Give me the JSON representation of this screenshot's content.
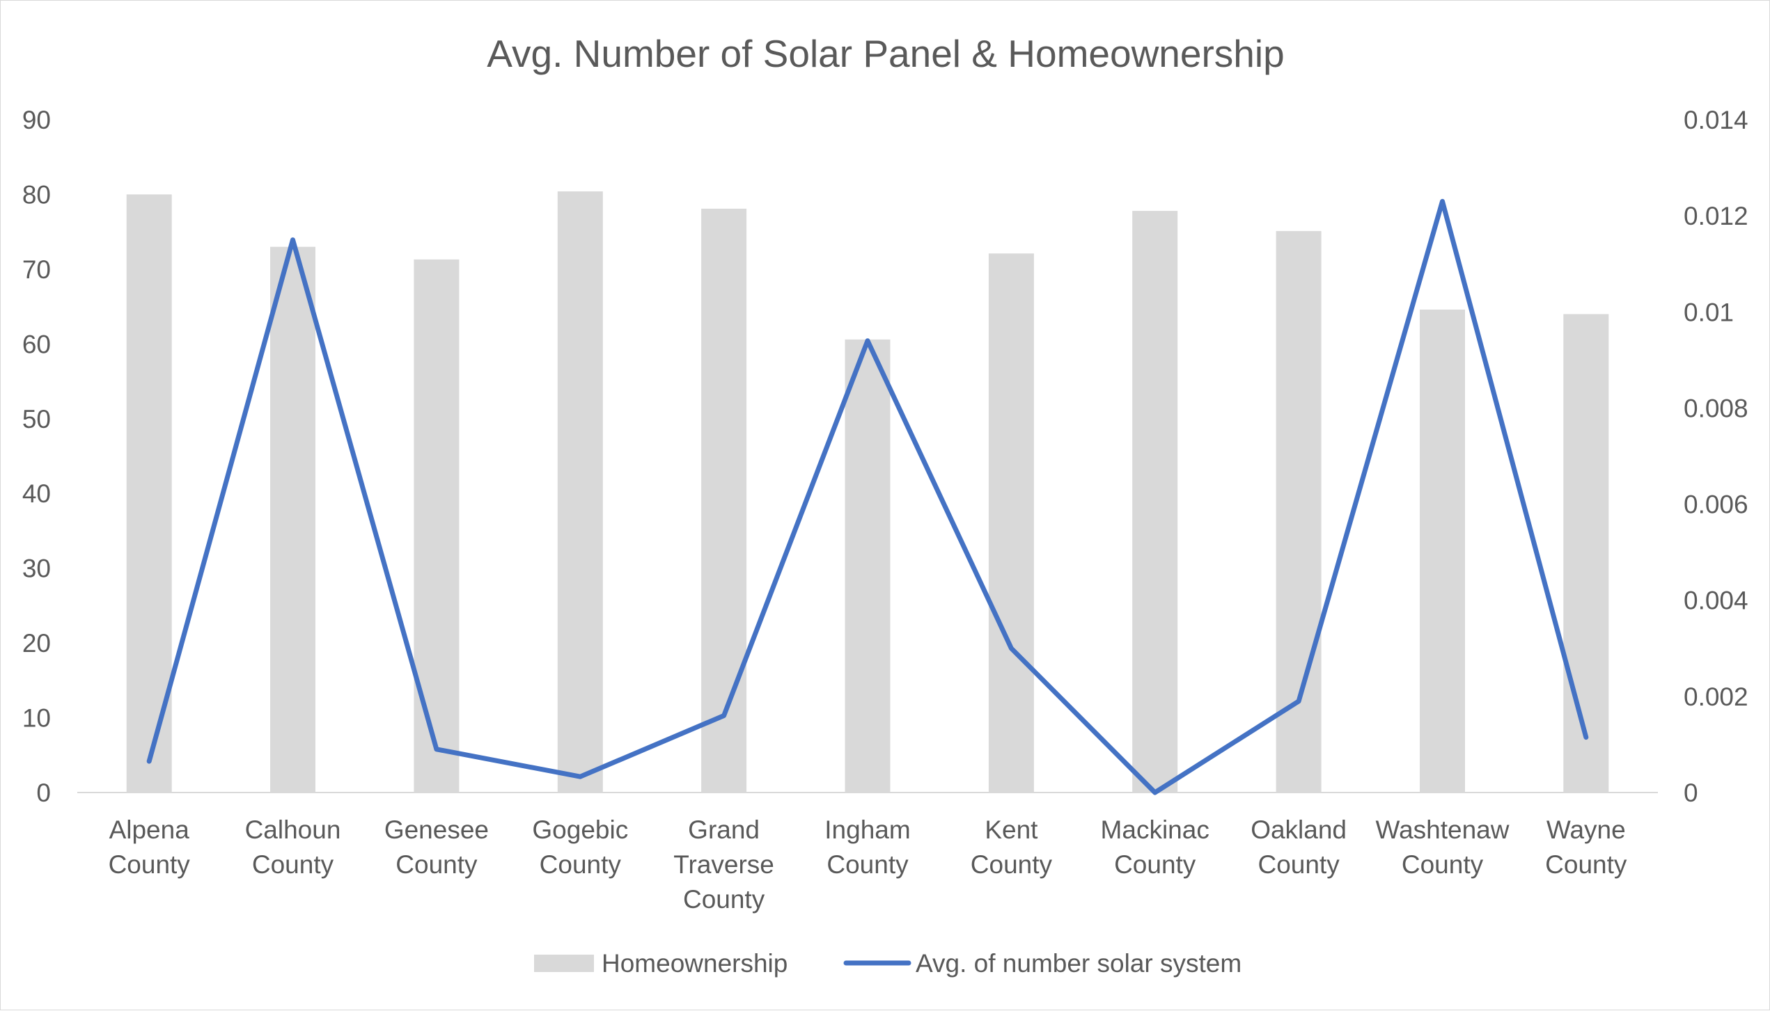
{
  "chart_data": {
    "type": "bar",
    "title": "Avg. Number of Solar Panel  & Homeownership",
    "categories": [
      [
        "Alpena",
        "County"
      ],
      [
        "Calhoun",
        "County"
      ],
      [
        "Genesee",
        "County"
      ],
      [
        "Gogebic",
        "County"
      ],
      [
        "Grand",
        "Traverse",
        "County"
      ],
      [
        "Ingham",
        "County"
      ],
      [
        "Kent",
        "County"
      ],
      [
        "Mackinac",
        "County"
      ],
      [
        "Oakland",
        "County"
      ],
      [
        "Washtenaw",
        "County"
      ],
      [
        "Wayne",
        "County"
      ]
    ],
    "series": [
      {
        "name": "Homeownership",
        "type": "bar",
        "axis": "left",
        "color": "#d9d9d9",
        "values": [
          80,
          73,
          71.3,
          80.4,
          78.1,
          60.6,
          72.1,
          77.8,
          75.1,
          64.6,
          64
        ]
      },
      {
        "name": "Avg. of number solar system",
        "type": "line",
        "axis": "right",
        "color": "#4472c4",
        "values": [
          0.00065,
          0.0115,
          0.0009,
          0.00033,
          0.0016,
          0.0094,
          0.003,
          0.0,
          0.0019,
          0.0123,
          0.00115
        ]
      }
    ],
    "y_left": {
      "min": 0,
      "max": 90,
      "ticks": [
        "0",
        "10",
        "20",
        "30",
        "40",
        "50",
        "60",
        "70",
        "80",
        "90"
      ]
    },
    "y_right": {
      "min": 0,
      "max": 0.014,
      "ticks": [
        "0",
        "0.002",
        "0.004",
        "0.006",
        "0.008",
        "0.01",
        "0.012",
        "0.014"
      ]
    },
    "grid": false,
    "legend": "bottom"
  }
}
